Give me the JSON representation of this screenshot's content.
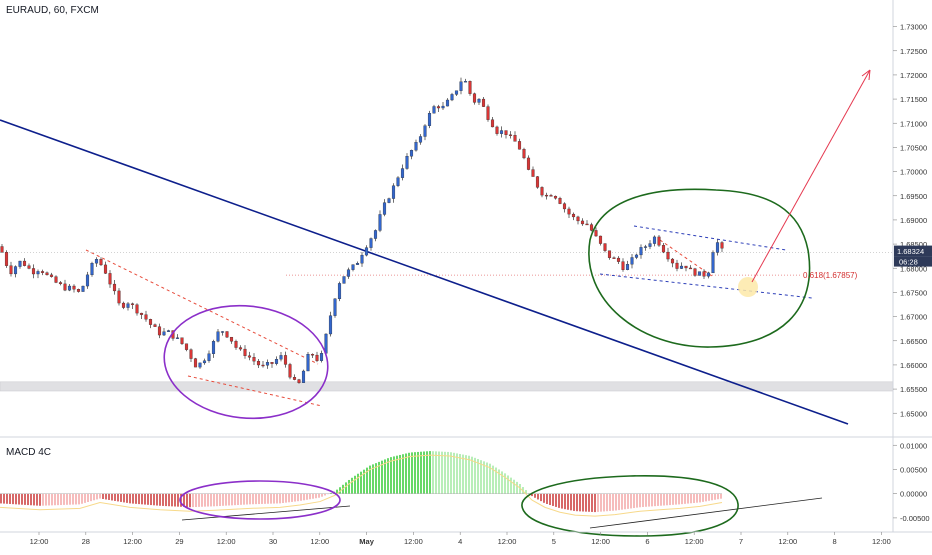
{
  "chart_data": {
    "type": "candlestick",
    "title": "EURAUD, 60, FXCM",
    "price_axis": {
      "ylim": [
        1.6455,
        1.7355
      ],
      "ticks": [
        "1.73000",
        "1.72500",
        "1.72000",
        "1.71500",
        "1.71000",
        "1.70500",
        "1.70000",
        "1.69500",
        "1.69000",
        "1.68500",
        "1.68000",
        "1.67500",
        "1.67000",
        "1.66500",
        "1.66000",
        "1.65500",
        "1.65000"
      ]
    },
    "time_axis": {
      "labels": [
        "12:00",
        "28",
        "12:00",
        "29",
        "12:00",
        "30",
        "12:00",
        "May",
        "12:00",
        "4",
        "12:00",
        "5",
        "12:00",
        "6",
        "12:00",
        "7",
        "12:00",
        "8",
        "12:00"
      ],
      "bold": [
        "May"
      ]
    },
    "last_price": "1.68324",
    "countdown": "06:28",
    "fib_label": "0.618(1.67857)",
    "fib_level": 1.67857,
    "support_zone": [
      1.6546,
      1.6565
    ],
    "close_path": [
      [
        0,
        1.6845
      ],
      [
        6,
        1.681
      ],
      [
        12,
        1.679
      ],
      [
        18,
        1.6815
      ],
      [
        25,
        1.6808
      ],
      [
        32,
        1.6792
      ],
      [
        40,
        1.68
      ],
      [
        48,
        1.6782
      ],
      [
        56,
        1.677
      ],
      [
        64,
        1.676
      ],
      [
        72,
        1.6758
      ],
      [
        80,
        1.6748
      ],
      [
        88,
        1.679
      ],
      [
        96,
        1.682
      ],
      [
        104,
        1.68
      ],
      [
        112,
        1.676
      ],
      [
        120,
        1.672
      ],
      [
        128,
        1.673
      ],
      [
        136,
        1.6715
      ],
      [
        144,
        1.67
      ],
      [
        152,
        1.668
      ],
      [
        160,
        1.6665
      ],
      [
        168,
        1.6668
      ],
      [
        176,
        1.6655
      ],
      [
        184,
        1.664
      ],
      [
        190,
        1.662
      ],
      [
        196,
        1.6598
      ],
      [
        202,
        1.6605
      ],
      [
        208,
        1.6625
      ],
      [
        214,
        1.6648
      ],
      [
        220,
        1.6675
      ],
      [
        226,
        1.6665
      ],
      [
        232,
        1.665
      ],
      [
        238,
        1.663
      ],
      [
        244,
        1.6625
      ],
      [
        250,
        1.6615
      ],
      [
        256,
        1.6605
      ],
      [
        262,
        1.6595
      ],
      [
        268,
        1.66
      ],
      [
        274,
        1.6605
      ],
      [
        280,
        1.662
      ],
      [
        286,
        1.66
      ],
      [
        292,
        1.657
      ],
      [
        298,
        1.6555
      ],
      [
        304,
        1.659
      ],
      [
        310,
        1.663
      ],
      [
        316,
        1.661
      ],
      [
        322,
        1.662
      ],
      [
        328,
        1.668
      ],
      [
        334,
        1.6735
      ],
      [
        340,
        1.6775
      ],
      [
        346,
        1.679
      ],
      [
        352,
        1.68
      ],
      [
        358,
        1.6815
      ],
      [
        364,
        1.684
      ],
      [
        370,
        1.686
      ],
      [
        376,
        1.688
      ],
      [
        382,
        1.692
      ],
      [
        388,
        1.6945
      ],
      [
        394,
        1.697
      ],
      [
        400,
        1.7
      ],
      [
        406,
        1.7025
      ],
      [
        412,
        1.7045
      ],
      [
        418,
        1.706
      ],
      [
        424,
        1.7095
      ],
      [
        430,
        1.712
      ],
      [
        436,
        1.714
      ],
      [
        442,
        1.713
      ],
      [
        448,
        1.7145
      ],
      [
        454,
        1.716
      ],
      [
        460,
        1.7185
      ],
      [
        464,
        1.7195
      ],
      [
        468,
        1.717
      ],
      [
        474,
        1.7145
      ],
      [
        480,
        1.715
      ],
      [
        486,
        1.712
      ],
      [
        492,
        1.71
      ],
      [
        498,
        1.708
      ],
      [
        504,
        1.7085
      ],
      [
        510,
        1.707
      ],
      [
        516,
        1.706
      ],
      [
        522,
        1.704
      ],
      [
        528,
        1.7
      ],
      [
        534,
        1.6985
      ],
      [
        540,
        1.696
      ],
      [
        546,
        1.695
      ],
      [
        552,
        1.6955
      ],
      [
        558,
        1.6945
      ],
      [
        564,
        1.6925
      ],
      [
        570,
        1.691
      ],
      [
        576,
        1.69
      ],
      [
        582,
        1.6895
      ],
      [
        588,
        1.689
      ],
      [
        594,
        1.687
      ],
      [
        600,
        1.685
      ],
      [
        606,
        1.683
      ],
      [
        612,
        1.682
      ],
      [
        618,
        1.6815
      ],
      [
        624,
        1.68
      ],
      [
        630,
        1.681
      ],
      [
        636,
        1.683
      ],
      [
        642,
        1.684
      ],
      [
        648,
        1.685
      ],
      [
        654,
        1.6865
      ],
      [
        660,
        1.685
      ],
      [
        666,
        1.683
      ],
      [
        672,
        1.6815
      ],
      [
        678,
        1.68
      ],
      [
        684,
        1.681
      ],
      [
        690,
        1.6795
      ],
      [
        696,
        1.679
      ],
      [
        702,
        1.6785
      ],
      [
        708,
        1.679
      ],
      [
        712,
        1.683
      ],
      [
        716,
        1.686
      ],
      [
        720,
        1.684
      ],
      [
        724,
        1.6832
      ]
    ],
    "macd": {
      "ylim": [
        -0.0075,
        0.0115
      ],
      "ticks": [
        "0.01000",
        "0.00500",
        "0.00000",
        "-0.00500"
      ],
      "path": [
        [
          0,
          -0.002
        ],
        [
          40,
          -0.0025
        ],
        [
          80,
          -0.0022
        ],
        [
          100,
          -0.001
        ],
        [
          130,
          -0.002
        ],
        [
          160,
          -0.0025
        ],
        [
          190,
          -0.0028
        ],
        [
          215,
          -0.0026
        ],
        [
          250,
          -0.0022
        ],
        [
          280,
          -0.002
        ],
        [
          300,
          -0.0015
        ],
        [
          320,
          -0.0008
        ],
        [
          335,
          0.0005
        ],
        [
          350,
          0.003
        ],
        [
          370,
          0.0058
        ],
        [
          390,
          0.0075
        ],
        [
          410,
          0.0085
        ],
        [
          430,
          0.0088
        ],
        [
          450,
          0.0086
        ],
        [
          470,
          0.0078
        ],
        [
          490,
          0.0062
        ],
        [
          505,
          0.0042
        ],
        [
          520,
          0.002
        ],
        [
          532,
          -0.0005
        ],
        [
          545,
          -0.002
        ],
        [
          560,
          -0.003
        ],
        [
          575,
          -0.0036
        ],
        [
          595,
          -0.0038
        ],
        [
          615,
          -0.0035
        ],
        [
          640,
          -0.0028
        ],
        [
          660,
          -0.0025
        ],
        [
          680,
          -0.0022
        ],
        [
          700,
          -0.0018
        ],
        [
          722,
          -0.001
        ]
      ]
    }
  }
}
